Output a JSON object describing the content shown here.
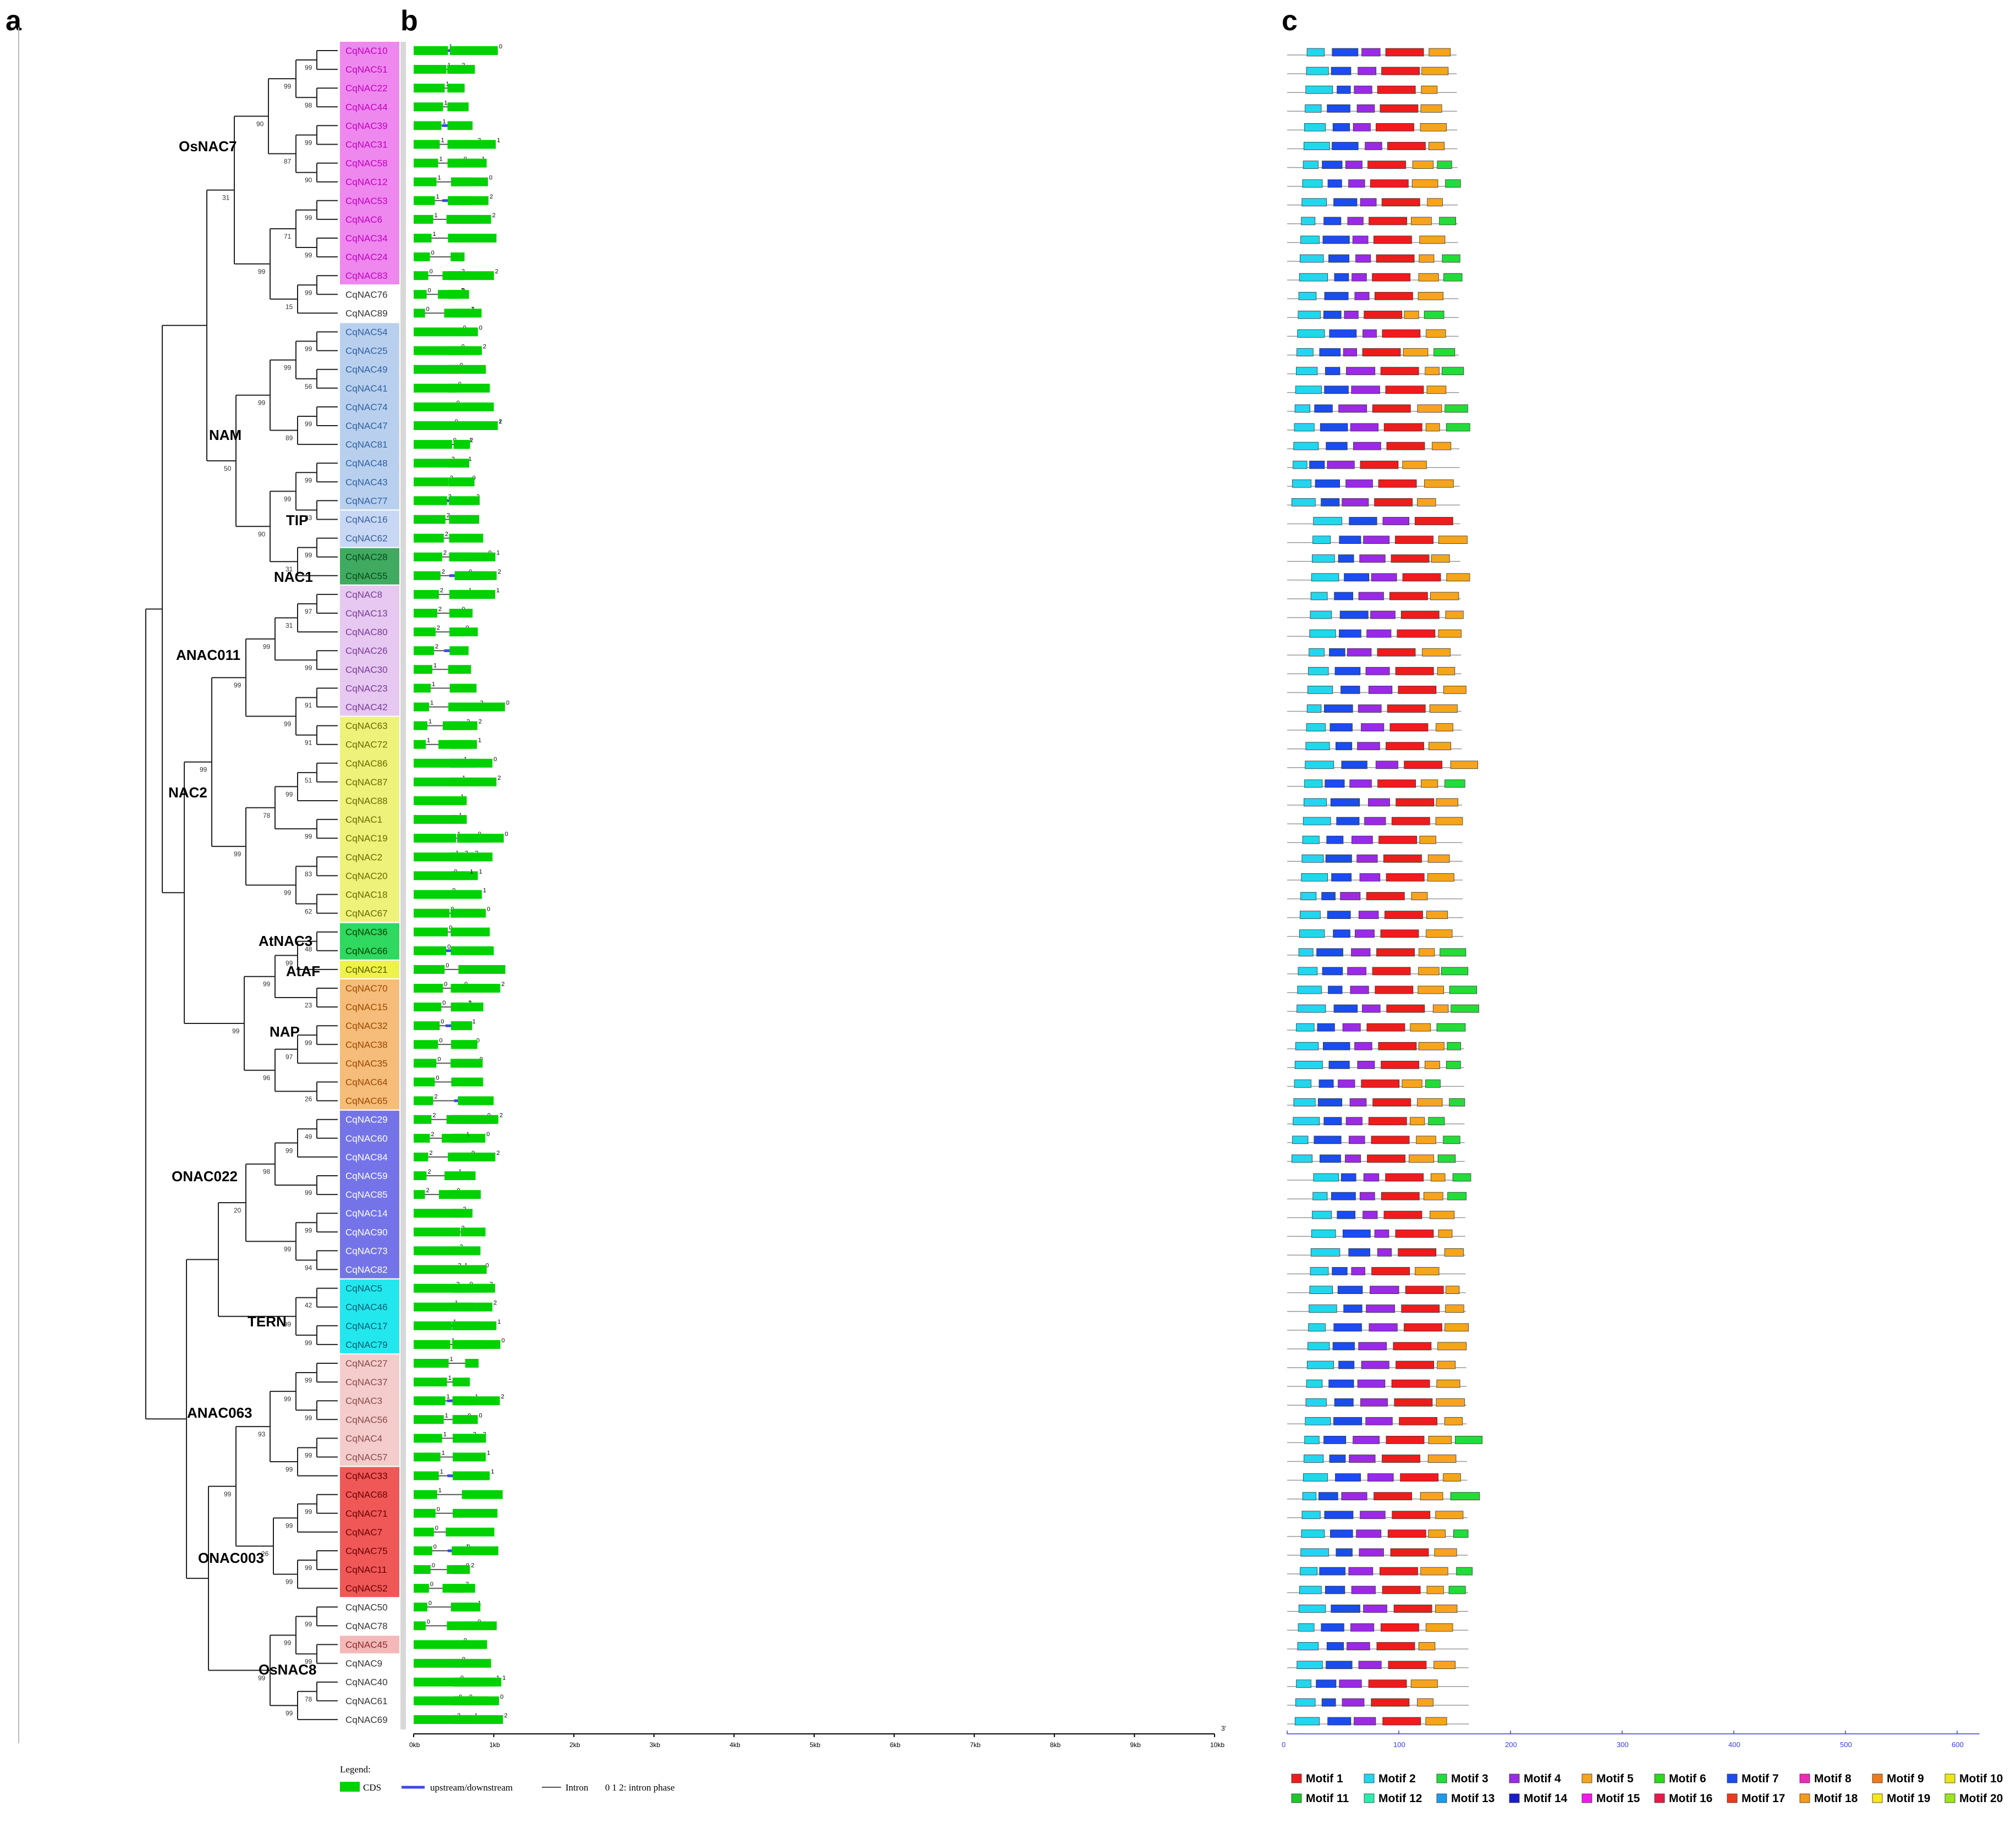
{
  "panels": {
    "a": "a",
    "b": "b",
    "c": "c"
  },
  "colors": {
    "cds": "#00d100",
    "utr": "#3e48e6",
    "intron": "#555555",
    "tree": "#222222"
  },
  "genes": [
    "CqNAC10",
    "CqNAC51",
    "CqNAC22",
    "CqNAC44",
    "CqNAC39",
    "CqNAC31",
    "CqNAC58",
    "CqNAC12",
    "CqNAC53",
    "CqNAC6",
    "CqNAC34",
    "CqNAC24",
    "CqNAC83",
    "CqNAC76",
    "CqNAC89",
    "CqNAC54",
    "CqNAC25",
    "CqNAC49",
    "CqNAC41",
    "CqNAC74",
    "CqNAC47",
    "CqNAC81",
    "CqNAC48",
    "CqNAC43",
    "CqNAC77",
    "CqNAC16",
    "CqNAC62",
    "CqNAC28",
    "CqNAC55",
    "CqNAC8",
    "CqNAC13",
    "CqNAC80",
    "CqNAC26",
    "CqNAC30",
    "CqNAC23",
    "CqNAC42",
    "CqNAC63",
    "CqNAC72",
    "CqNAC86",
    "CqNAC87",
    "CqNAC88",
    "CqNAC1",
    "CqNAC19",
    "CqNAC2",
    "CqNAC20",
    "CqNAC18",
    "CqNAC67",
    "CqNAC36",
    "CqNAC66",
    "CqNAC21",
    "CqNAC70",
    "CqNAC15",
    "CqNAC32",
    "CqNAC38",
    "CqNAC35",
    "CqNAC64",
    "CqNAC65",
    "CqNAC29",
    "CqNAC60",
    "CqNAC84",
    "CqNAC59",
    "CqNAC85",
    "CqNAC14",
    "CqNAC90",
    "CqNAC73",
    "CqNAC82",
    "CqNAC5",
    "CqNAC46",
    "CqNAC17",
    "CqNAC79",
    "CqNAC27",
    "CqNAC37",
    "CqNAC3",
    "CqNAC56",
    "CqNAC4",
    "CqNAC57",
    "CqNAC33",
    "CqNAC68",
    "CqNAC71",
    "CqNAC7",
    "CqNAC75",
    "CqNAC11",
    "CqNAC52",
    "CqNAC50",
    "CqNAC78",
    "CqNAC45",
    "CqNAC9",
    "CqNAC40",
    "CqNAC61",
    "CqNAC69"
  ],
  "clade_groups": [
    {
      "name": "OsNAC7",
      "color": "#ee88ee",
      "text_color": "#c000c0",
      "from": 0,
      "to": 12
    },
    {
      "name": "NAM",
      "color": "#b8d0ee",
      "text_color": "#2f5fa0",
      "from": 15,
      "to": 24
    },
    {
      "name": "TIP",
      "color": "#c8d8f4",
      "text_color": "#3a5fa0",
      "from": 25,
      "to": 26
    },
    {
      "name": "NAC1",
      "color": "#3faa60",
      "text_color": "#0a4a1a",
      "from": 27,
      "to": 28
    },
    {
      "name": "ANAC011",
      "color": "#e6c8f0",
      "text_color": "#7a3a9a",
      "from": 29,
      "to": 35
    },
    {
      "name": "NAC2",
      "color": "#eef27a",
      "text_color": "#6a6a00",
      "from": 36,
      "to": 46
    },
    {
      "name": "AtNAC3",
      "color": "#2fd85f",
      "text_color": "#004000",
      "from": 47,
      "to": 48
    },
    {
      "name": "AtAF",
      "color": "#eef24a",
      "text_color": "#5a5a00",
      "from": 49,
      "to": 49
    },
    {
      "name": "NAP",
      "color": "#f6bc7a",
      "text_color": "#9a4a00",
      "from": 50,
      "to": 56
    },
    {
      "name": "ONAC022",
      "color": "#7474e8",
      "text_color": "#ffffff",
      "from": 57,
      "to": 65
    },
    {
      "name": "TERN",
      "color": "#22e8ee",
      "text_color": "#005a70",
      "from": 66,
      "to": 69
    },
    {
      "name": "ANAC063",
      "color": "#f4cccc",
      "text_color": "#8a4a4a",
      "from": 70,
      "to": 75
    },
    {
      "name": "ONAC003",
      "color": "#f05858",
      "text_color": "#6a0000",
      "from": 76,
      "to": 82
    },
    {
      "name": "OsNAC8",
      "color": "#f4b8b8",
      "text_color": "#8a2a2a",
      "from": 85,
      "to": 85
    }
  ],
  "clade_labels": [
    "OsNAC7",
    "NAM",
    "TIP",
    "NAC1",
    "ANAC011",
    "NAC2",
    "AtNAC3",
    "AtAF",
    "NAP",
    "ONAC022",
    "TERN",
    "ANAC063",
    "ONAC003",
    "OsNAC8"
  ],
  "bootstrap_values": [
    "99",
    "98",
    "99",
    "99",
    "90",
    "87",
    "90",
    "99",
    "99",
    "71",
    "99",
    "15",
    "99",
    "31",
    "99",
    "56",
    "99",
    "99",
    "89",
    "99",
    "99",
    "83",
    "99",
    "99",
    "31",
    "90",
    "50",
    "97",
    "31",
    "99",
    "99",
    "91",
    "91",
    "99",
    "99",
    "51",
    "99",
    "99",
    "78",
    "83",
    "62",
    "99",
    "99",
    "99",
    "48",
    "99",
    "23",
    "99",
    "99",
    "97",
    "26",
    "96",
    "99",
    "49",
    "99",
    "99",
    "98",
    "99",
    "94",
    "99",
    "20",
    "42",
    "99",
    "99",
    "99",
    "99",
    "99",
    "99",
    "99",
    "93",
    "99",
    "99",
    "99",
    "99",
    "26",
    "99",
    "99",
    "99",
    "99",
    "78",
    "99",
    "99",
    "44",
    "99",
    "10",
    "99",
    "45",
    "99"
  ],
  "gene_axis": {
    "ticks": [
      "0kb",
      "1kb",
      "2kb",
      "3kb",
      "4kb",
      "5kb",
      "6kb",
      "7kb",
      "8kb",
      "9kb",
      "10kb"
    ],
    "end_label": "3'"
  },
  "legend": {
    "title": "Legend:",
    "cds": "CDS",
    "utr": "upstream/downstream",
    "intron": "Intron",
    "phase": "0 1 2: intron phase"
  },
  "motif_axis": {
    "ticks": [
      "0",
      "100",
      "200",
      "300",
      "400",
      "500",
      "600"
    ]
  },
  "motifs": [
    {
      "name": "Motif 1",
      "color": "#ee1c1c"
    },
    {
      "name": "Motif 2",
      "color": "#22d6ee"
    },
    {
      "name": "Motif 3",
      "color": "#22dc3a"
    },
    {
      "name": "Motif 4",
      "color": "#9a2ae6"
    },
    {
      "name": "Motif 5",
      "color": "#f6a41c"
    },
    {
      "name": "Motif 6",
      "color": "#2bd81a"
    },
    {
      "name": "Motif 7",
      "color": "#1a4cee"
    },
    {
      "name": "Motif 8",
      "color": "#ee2ab8"
    },
    {
      "name": "Motif 9",
      "color": "#f07a1a"
    },
    {
      "name": "Motif 10",
      "color": "#eae61a"
    },
    {
      "name": "Motif 11",
      "color": "#1ac82a"
    },
    {
      "name": "Motif 12",
      "color": "#2aeeb0"
    },
    {
      "name": "Motif 13",
      "color": "#1a9cee"
    },
    {
      "name": "Motif 14",
      "color": "#1a1ad0"
    },
    {
      "name": "Motif 15",
      "color": "#ee1aee"
    },
    {
      "name": "Motif 16",
      "color": "#e61a4a"
    },
    {
      "name": "Motif 17",
      "color": "#ee3a1a"
    },
    {
      "name": "Motif 18",
      "color": "#f69a1a"
    },
    {
      "name": "Motif 19",
      "color": "#f6e61a"
    },
    {
      "name": "Motif 20",
      "color": "#9ae61a"
    }
  ]
}
